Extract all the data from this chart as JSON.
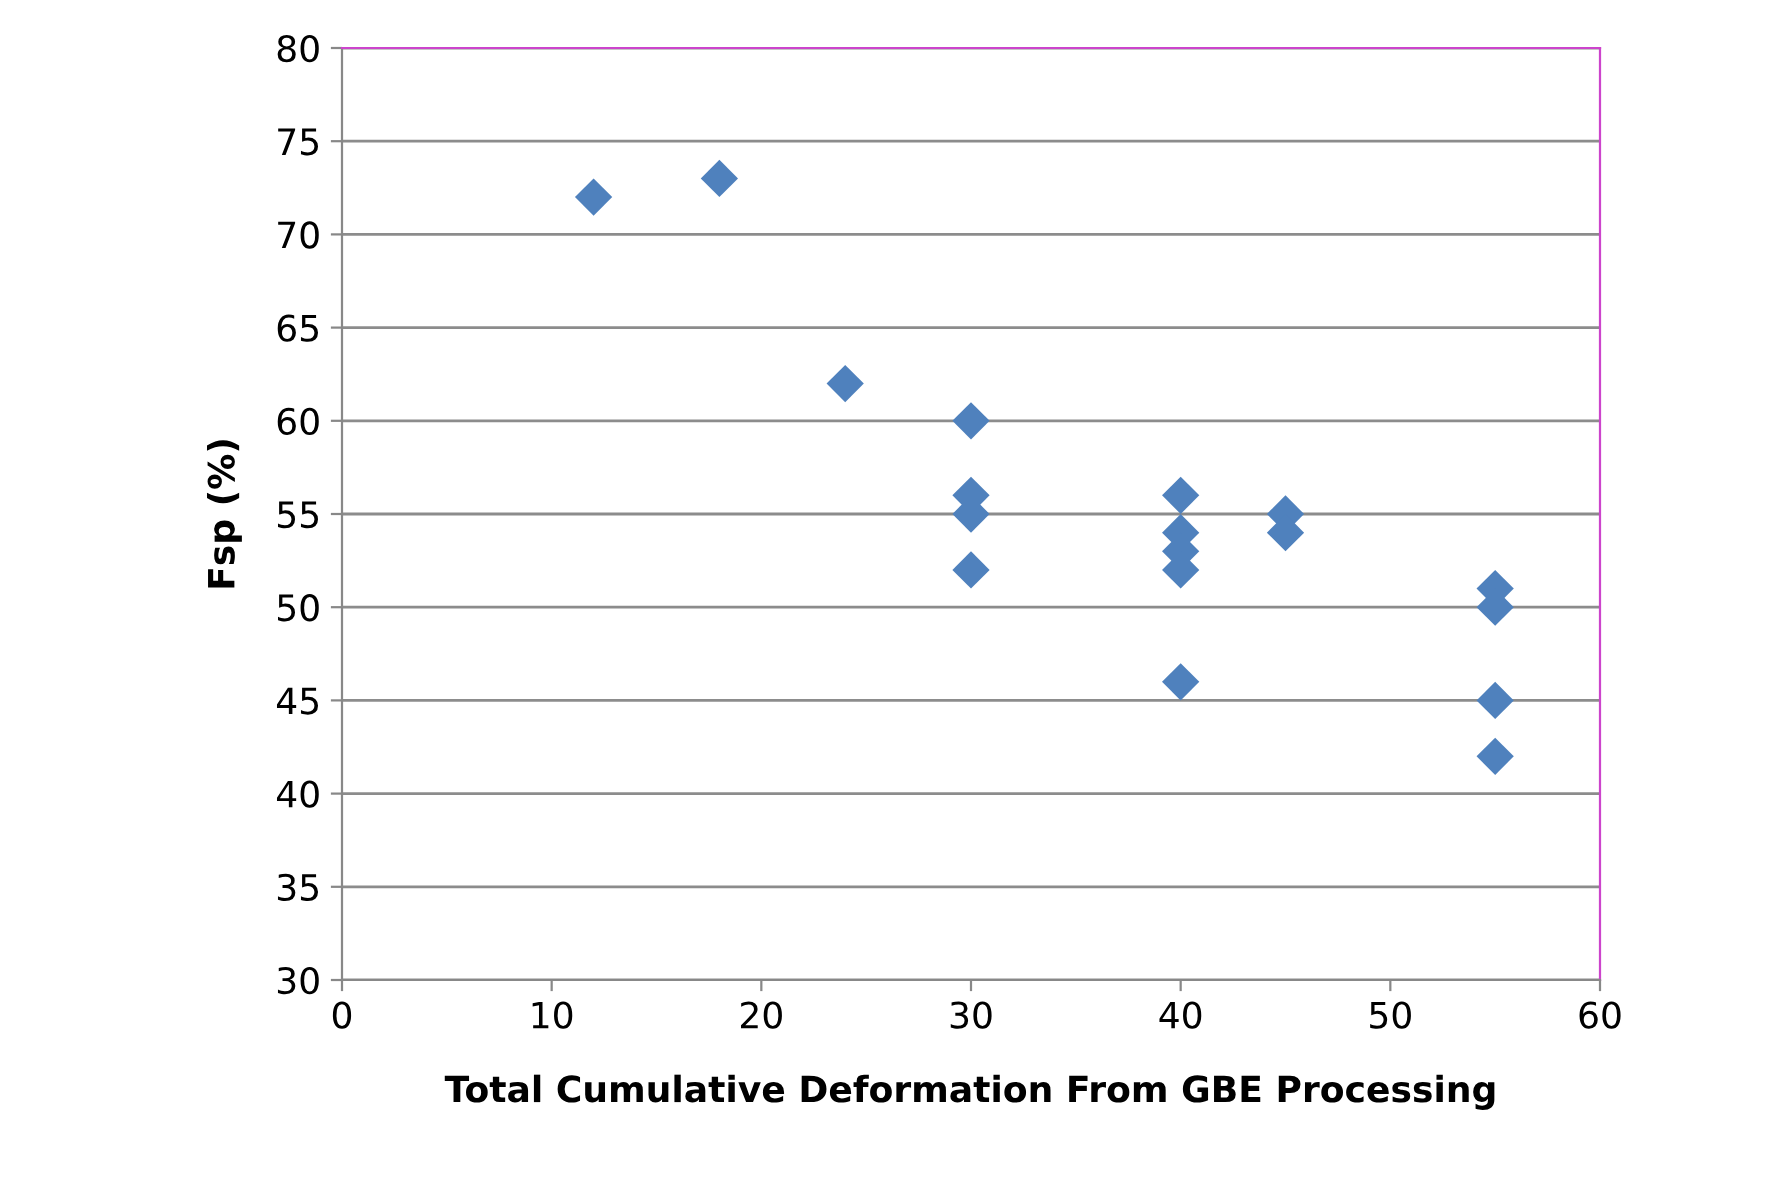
{
  "chart_data": {
    "type": "scatter",
    "xlabel": "Total Cumulative Deformation From GBE Processing",
    "ylabel": "Fsp (%)",
    "x": [
      12,
      18,
      24,
      30,
      30,
      30,
      30,
      40,
      40,
      40,
      40,
      40,
      45,
      45,
      55,
      55,
      55,
      55
    ],
    "series": [
      {
        "color": "#4f81bd",
        "values": [
          72,
          73,
          62,
          60,
          56,
          55,
          52,
          56,
          54,
          53,
          52,
          46,
          55,
          54,
          51,
          50,
          45,
          42
        ]
      }
    ],
    "xlim": [
      0,
      60
    ],
    "xticks": [
      0,
      10,
      20,
      30,
      40,
      50,
      60
    ],
    "ylim": [
      30,
      80
    ],
    "yticks": [
      30,
      35,
      40,
      45,
      50,
      55,
      60,
      65,
      70,
      75,
      80
    ],
    "grid": "y",
    "marker": "diamond"
  }
}
